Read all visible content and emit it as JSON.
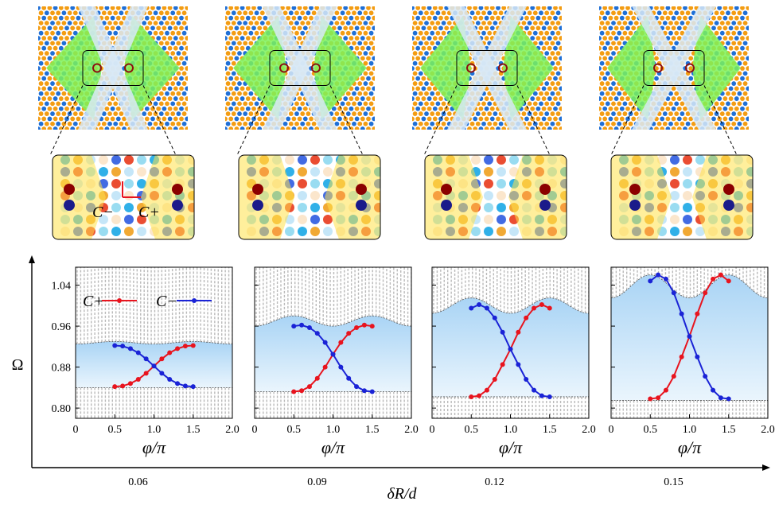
{
  "figure": {
    "y_axis_label": "Ω",
    "x_axis_label": "δR/d",
    "panel_x_label": "φ/π",
    "inset_labels": {
      "c_minus": "C−",
      "c_plus": "C+"
    },
    "legend": {
      "c_plus": "C+",
      "c_minus": "C−"
    },
    "colors": {
      "c_plus": "#e8141e",
      "c_minus": "#1a23d6",
      "band_grey": "#b9b9b9",
      "gap_blue": "#bfe0f7",
      "lattice_blue": "#1f6fd6",
      "lattice_orange": "#f39c12",
      "lattice_green": "#7cf25a"
    }
  },
  "chart_data": [
    {
      "type": "line",
      "dR_over_d": "0.06",
      "xlabel": "φ/π",
      "ylabel": "Ω",
      "xlim": [
        0,
        2.0
      ],
      "ylim": [
        0.78,
        1.075
      ],
      "xticks": [
        "0",
        "0.5",
        "1.0",
        "1.5",
        "2.0"
      ],
      "yticks": [
        "0.80",
        "0.88",
        "0.96",
        "1.04"
      ],
      "gap": {
        "lower": 0.84,
        "upper": 0.925,
        "amp": 0.005
      },
      "series": [
        {
          "name": "C+",
          "x": [
            0.5,
            0.6,
            0.7,
            0.8,
            0.9,
            1.0,
            1.1,
            1.2,
            1.3,
            1.4,
            1.5
          ],
          "y": [
            0.842,
            0.843,
            0.848,
            0.856,
            0.868,
            0.882,
            0.896,
            0.908,
            0.916,
            0.921,
            0.922
          ]
        },
        {
          "name": "C−",
          "x": [
            0.5,
            0.6,
            0.7,
            0.8,
            0.9,
            1.0,
            1.1,
            1.2,
            1.3,
            1.4,
            1.5
          ],
          "y": [
            0.922,
            0.921,
            0.916,
            0.908,
            0.896,
            0.882,
            0.868,
            0.856,
            0.848,
            0.843,
            0.842
          ]
        }
      ]
    },
    {
      "type": "line",
      "dR_over_d": "0.09",
      "xlabel": "φ/π",
      "ylabel": "Ω",
      "xlim": [
        0,
        2.0
      ],
      "ylim": [
        0.78,
        1.075
      ],
      "xticks": [
        "0",
        "0.5",
        "1.0",
        "1.5",
        "2.0"
      ],
      "yticks": [],
      "gap": {
        "lower": 0.832,
        "upper": 0.96,
        "amp": 0.02
      },
      "series": [
        {
          "name": "C+",
          "x": [
            0.5,
            0.6,
            0.7,
            0.8,
            0.9,
            1.0,
            1.1,
            1.2,
            1.3,
            1.4,
            1.5
          ],
          "y": [
            0.832,
            0.834,
            0.842,
            0.858,
            0.88,
            0.905,
            0.928,
            0.946,
            0.957,
            0.962,
            0.96
          ]
        },
        {
          "name": "C−",
          "x": [
            0.5,
            0.6,
            0.7,
            0.8,
            0.9,
            1.0,
            1.1,
            1.2,
            1.3,
            1.4,
            1.5
          ],
          "y": [
            0.96,
            0.962,
            0.957,
            0.946,
            0.928,
            0.905,
            0.88,
            0.858,
            0.842,
            0.834,
            0.832
          ]
        }
      ]
    },
    {
      "type": "line",
      "dR_over_d": "0.12",
      "xlabel": "φ/π",
      "ylabel": "Ω",
      "xlim": [
        0,
        2.0
      ],
      "ylim": [
        0.78,
        1.075
      ],
      "xticks": [
        "0",
        "0.5",
        "1.0",
        "1.5",
        "2.0"
      ],
      "yticks": [],
      "gap": {
        "lower": 0.822,
        "upper": 0.985,
        "amp": 0.03
      },
      "series": [
        {
          "name": "C+",
          "x": [
            0.5,
            0.6,
            0.7,
            0.8,
            0.9,
            1.0,
            1.1,
            1.2,
            1.3,
            1.4,
            1.5
          ],
          "y": [
            0.822,
            0.824,
            0.835,
            0.856,
            0.885,
            0.915,
            0.948,
            0.976,
            0.995,
            1.002,
            0.995
          ]
        },
        {
          "name": "C−",
          "x": [
            0.5,
            0.6,
            0.7,
            0.8,
            0.9,
            1.0,
            1.1,
            1.2,
            1.3,
            1.4,
            1.5
          ],
          "y": [
            0.995,
            1.002,
            0.995,
            0.976,
            0.948,
            0.915,
            0.885,
            0.856,
            0.835,
            0.824,
            0.822
          ]
        }
      ]
    },
    {
      "type": "line",
      "dR_over_d": "0.15",
      "xlabel": "φ/π",
      "ylabel": "Ω",
      "xlim": [
        0,
        2.0
      ],
      "ylim": [
        0.78,
        1.075
      ],
      "xticks": [
        "0",
        "0.5",
        "1.0",
        "1.5",
        "2.0"
      ],
      "yticks": [],
      "gap": {
        "lower": 0.815,
        "upper": 1.015,
        "amp": 0.045
      },
      "series": [
        {
          "name": "C+",
          "x": [
            0.5,
            0.6,
            0.7,
            0.8,
            0.9,
            1.0,
            1.1,
            1.2,
            1.3,
            1.4,
            1.5
          ],
          "y": [
            0.818,
            0.82,
            0.835,
            0.862,
            0.9,
            0.94,
            0.984,
            1.025,
            1.052,
            1.06,
            1.048
          ]
        },
        {
          "name": "C−",
          "x": [
            0.5,
            0.6,
            0.7,
            0.8,
            0.9,
            1.0,
            1.1,
            1.2,
            1.3,
            1.4,
            1.5
          ],
          "y": [
            1.048,
            1.06,
            1.052,
            1.025,
            0.984,
            0.94,
            0.9,
            0.862,
            0.835,
            0.82,
            0.818
          ]
        }
      ]
    }
  ]
}
